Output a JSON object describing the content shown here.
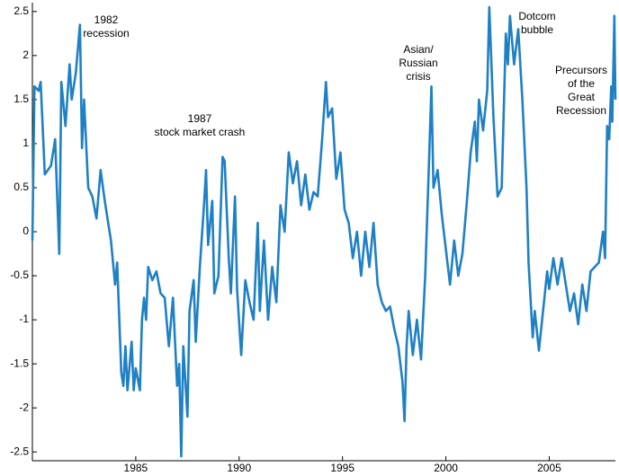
{
  "chart_data": {
    "type": "line",
    "color": "#1f80c4",
    "xlim": [
      1980,
      2008.2
    ],
    "ylim": [
      -2.6,
      2.6
    ],
    "xticks": [
      1985,
      1990,
      1995,
      2000,
      2005
    ],
    "yticks": [
      -2.5,
      -2,
      -1.5,
      -1,
      -0.5,
      0,
      0.5,
      1,
      1.5,
      2,
      2.5
    ],
    "annotations": [
      [
        "1982",
        "recession"
      ],
      [
        "1987",
        "stock market crash"
      ],
      [
        "Asian/",
        "Russian",
        "crisis"
      ],
      [
        "Dotcom",
        "bubble"
      ],
      [
        "Precursors",
        "of the",
        "Great",
        "Recession"
      ]
    ],
    "x": [
      1980.0,
      1980.1,
      1980.3,
      1980.4,
      1980.6,
      1980.9,
      1981.1,
      1981.3,
      1981.4,
      1981.6,
      1981.8,
      1981.9,
      1982.1,
      1982.3,
      1982.4,
      1982.5,
      1982.7,
      1982.9,
      1983.1,
      1983.3,
      1983.5,
      1983.8,
      1984.0,
      1984.1,
      1984.3,
      1984.4,
      1984.5,
      1984.6,
      1984.8,
      1984.9,
      1985.0,
      1985.2,
      1985.3,
      1985.4,
      1985.5,
      1985.6,
      1985.8,
      1986.0,
      1986.2,
      1986.4,
      1986.6,
      1986.8,
      1987.0,
      1987.1,
      1987.2,
      1987.3,
      1987.5,
      1987.6,
      1987.8,
      1987.9,
      1988.1,
      1988.3,
      1988.4,
      1988.5,
      1988.7,
      1988.8,
      1989.0,
      1989.2,
      1989.3,
      1989.5,
      1989.6,
      1989.8,
      1989.9,
      1990.1,
      1990.3,
      1990.5,
      1990.7,
      1990.9,
      1991.0,
      1991.2,
      1991.4,
      1991.6,
      1991.8,
      1992.0,
      1992.2,
      1992.4,
      1992.6,
      1992.8,
      1993.0,
      1993.2,
      1993.4,
      1993.6,
      1993.8,
      1994.0,
      1994.2,
      1994.3,
      1994.5,
      1994.7,
      1994.9,
      1995.1,
      1995.3,
      1995.5,
      1995.7,
      1995.9,
      1996.1,
      1996.3,
      1996.5,
      1996.7,
      1996.9,
      1997.1,
      1997.3,
      1997.5,
      1997.7,
      1997.9,
      1998.0,
      1998.1,
      1998.2,
      1998.4,
      1998.6,
      1998.8,
      1999.0,
      1999.2,
      1999.3,
      1999.4,
      1999.6,
      1999.8,
      2000.0,
      2000.2,
      2000.4,
      2000.6,
      2000.8,
      2001.0,
      2001.2,
      2001.4,
      2001.5,
      2001.6,
      2001.8,
      2002.0,
      2002.1,
      2002.3,
      2002.5,
      2002.7,
      2002.9,
      2003.0,
      2003.1,
      2003.3,
      2003.5,
      2003.7,
      2003.9,
      2004.0,
      2004.2,
      2004.3,
      2004.5,
      2004.7,
      2004.9,
      2005.0,
      2005.2,
      2005.4,
      2005.6,
      2005.8,
      2006.0,
      2006.2,
      2006.4,
      2006.6,
      2006.8,
      2007.0,
      2007.2,
      2007.4,
      2007.6,
      2007.7,
      2007.8,
      2007.9,
      2008.0,
      2008.05,
      2008.15,
      2008.2
    ],
    "values": [
      -0.1,
      1.65,
      1.6,
      1.7,
      0.65,
      0.75,
      1.05,
      -0.25,
      1.7,
      1.2,
      1.9,
      1.5,
      1.8,
      2.35,
      0.95,
      1.5,
      0.5,
      0.4,
      0.15,
      0.7,
      0.35,
      -0.1,
      -0.6,
      -0.35,
      -1.6,
      -1.75,
      -1.3,
      -1.8,
      -1.25,
      -1.8,
      -1.55,
      -1.8,
      -1.0,
      -0.75,
      -1.0,
      -0.4,
      -0.55,
      -0.45,
      -0.7,
      -0.75,
      -1.3,
      -0.75,
      -1.75,
      -1.5,
      -2.55,
      -1.3,
      -2.1,
      -0.9,
      -0.55,
      -1.25,
      -0.4,
      0.3,
      0.7,
      -0.15,
      0.35,
      -0.7,
      -0.5,
      0.85,
      0.8,
      -0.3,
      -0.7,
      0.4,
      -0.65,
      -1.4,
      -0.55,
      -0.8,
      -1.0,
      0.1,
      -0.9,
      -0.1,
      -1.0,
      -0.4,
      -0.8,
      0.3,
      0.0,
      0.9,
      0.55,
      0.8,
      0.3,
      0.65,
      0.25,
      0.45,
      0.4,
      1.0,
      1.7,
      1.3,
      1.4,
      0.6,
      0.9,
      0.25,
      0.1,
      -0.3,
      0.0,
      -0.5,
      0.0,
      -0.4,
      0.1,
      -0.6,
      -0.8,
      -0.9,
      -0.85,
      -1.1,
      -1.3,
      -1.7,
      -2.15,
      -1.3,
      -0.9,
      -1.4,
      -1.0,
      -1.45,
      -0.5,
      0.9,
      1.65,
      0.5,
      0.7,
      0.2,
      -0.2,
      -0.6,
      -0.1,
      -0.5,
      -0.25,
      0.3,
      0.9,
      1.25,
      0.8,
      1.5,
      1.15,
      1.6,
      2.55,
      1.3,
      0.4,
      0.5,
      2.25,
      1.9,
      2.45,
      1.9,
      2.3,
      1.5,
      0.5,
      -0.35,
      -1.2,
      -0.9,
      -1.35,
      -0.9,
      -0.45,
      -0.65,
      -0.3,
      -0.6,
      -0.3,
      -0.6,
      -0.9,
      -0.7,
      -1.05,
      -0.6,
      -0.9,
      -0.45,
      -0.4,
      -0.35,
      0.0,
      -0.3,
      1.2,
      1.05,
      1.65,
      1.25,
      2.45,
      1.5
    ]
  }
}
